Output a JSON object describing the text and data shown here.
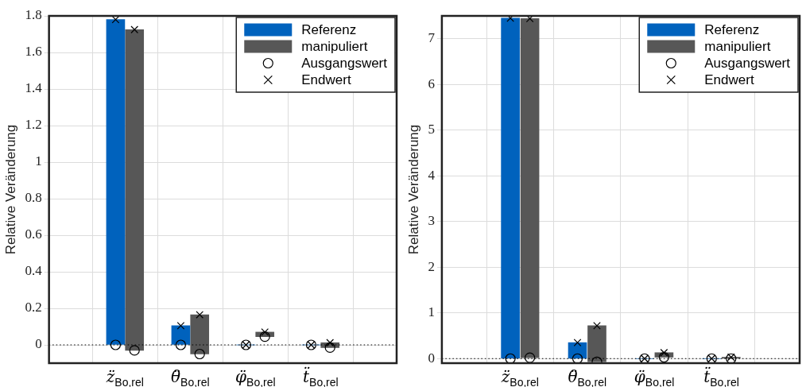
{
  "chart_data": [
    {
      "type": "bar",
      "ylabel": "Relative Veränderung",
      "categories": [
        "z̈$_{Bo,rel}$",
        "θ̈$_{Bo,rel}$",
        "φ̈$_{Bo,rel}$",
        "ẗ$_{Bo,rel}$"
      ],
      "ylim": [
        -0.1,
        1.8
      ],
      "yticks": [
        0,
        0.2,
        0.4,
        0.6,
        0.8,
        1,
        1.2,
        1.4,
        1.6,
        1.8
      ],
      "grid": true,
      "legend": "top right",
      "ref_lines": [
        {
          "axis": "y",
          "value": 0,
          "color": "#000000",
          "line_style": "dotted"
        }
      ],
      "series": [
        {
          "name": "Referenz",
          "color": "#0062bd",
          "base": [
            0,
            0,
            0,
            0
          ],
          "values": [
            1.78,
            0.105,
            0,
            0
          ]
        },
        {
          "name": "manipuliert",
          "color": "#575757",
          "base": [
            -0.03,
            -0.05,
            0.045,
            -0.015
          ],
          "values": [
            1.755,
            0.215,
            0.025,
            0.027
          ]
        },
        {
          "name": "Ausgangswert",
          "type": "scatter",
          "marker": "circle",
          "color": "#000000",
          "x": [
            "z̈$_{Bo,rel}$",
            "z̈$_{Bo,rel}$",
            "θ̈$_{Bo,rel}$",
            "θ̈$_{Bo,rel}$",
            "φ̈$_{Bo,rel}$",
            "φ̈$_{Bo,rel}$",
            "ẗ$_{Bo,rel}$",
            "ẗ$_{Bo,rel}$"
          ],
          "values": [
            0,
            -0.03,
            0,
            -0.05,
            0,
            0.045,
            0,
            -0.015
          ]
        },
        {
          "name": "Endwert",
          "type": "scatter",
          "marker": "cross",
          "color": "#000000",
          "x": [
            "z̈$_{Bo,rel}$",
            "z̈$_{Bo,rel}$",
            "θ̈$_{Bo,rel}$",
            "θ̈$_{Bo,rel}$",
            "φ̈$_{Bo,rel}$",
            "φ̈$_{Bo,rel}$",
            "ẗ$_{Bo,rel}$",
            "ẗ$_{Bo,rel}$"
          ],
          "values": [
            1.78,
            1.725,
            0.105,
            0.165,
            0,
            0.07,
            0,
            0.012
          ]
        }
      ]
    },
    {
      "type": "bar",
      "ylabel": "Relative Veränderung",
      "categories": [
        "z̈$_{Bo,rel}$",
        "θ̈$_{Bo,rel}$",
        "φ̈$_{Bo,rel}$",
        "ẗ$_{Bo,rel}$"
      ],
      "ylim": [
        -0.1,
        7.5
      ],
      "yticks": [
        0,
        1,
        2,
        3,
        4,
        5,
        6,
        7
      ],
      "grid": true,
      "legend": "top right",
      "ref_lines": [
        {
          "axis": "y",
          "value": 0,
          "color": "#000000",
          "line_style": "dotted"
        }
      ],
      "series": [
        {
          "name": "Referenz",
          "color": "#0062bd",
          "base": [
            0,
            0,
            0,
            0
          ],
          "values": [
            7.45,
            0.35,
            0,
            0
          ]
        },
        {
          "name": "manipuliert",
          "color": "#575757",
          "base": [
            0.02,
            -0.07,
            0.03,
            0
          ],
          "values": [
            7.42,
            0.79,
            0.1,
            0.03
          ]
        },
        {
          "name": "Ausgangswert",
          "type": "scatter",
          "marker": "circle",
          "color": "#000000",
          "x": [
            "z̈$_{Bo,rel}$",
            "z̈$_{Bo,rel}$",
            "θ̈$_{Bo,rel}$",
            "θ̈$_{Bo,rel}$",
            "φ̈$_{Bo,rel}$",
            "φ̈$_{Bo,rel}$",
            "ẗ$_{Bo,rel}$",
            "ẗ$_{Bo,rel}$"
          ],
          "values": [
            0,
            0.02,
            0,
            -0.07,
            0,
            0.03,
            0,
            0
          ]
        },
        {
          "name": "Endwert",
          "type": "scatter",
          "marker": "cross",
          "color": "#000000",
          "x": [
            "z̈$_{Bo,rel}$",
            "z̈$_{Bo,rel}$",
            "θ̈$_{Bo,rel}$",
            "θ̈$_{Bo,rel}$",
            "φ̈$_{Bo,rel}$",
            "φ̈$_{Bo,rel}$",
            "ẗ$_{Bo,rel}$",
            "ẗ$_{Bo,rel}$"
          ],
          "values": [
            7.45,
            7.44,
            0.35,
            0.72,
            0,
            0.13,
            0,
            0.03
          ]
        }
      ]
    }
  ]
}
